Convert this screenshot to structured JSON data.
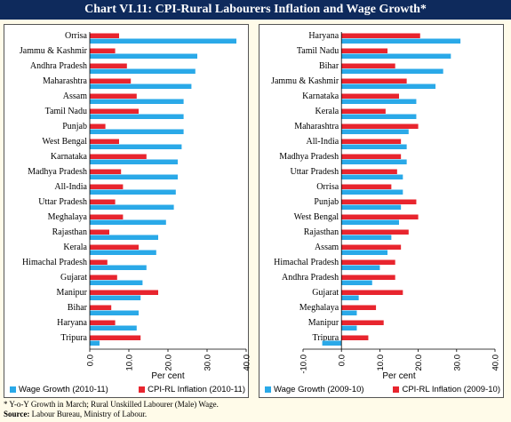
{
  "title": "Chart VI.11: CPI-Rural Labourers Inflation and Wage Growth*",
  "colors": {
    "wage": "#2aa9e8",
    "cpi": "#e8252e",
    "title_bg": "#0e2a5c"
  },
  "chart_data": [
    {
      "type": "bar",
      "orientation": "horizontal",
      "categories": [
        "Orrisa",
        "Jammu & Kashmir",
        "Andhra Pradesh",
        "Maharashtra",
        "Assam",
        "Tamil Nadu",
        "Punjab",
        "West Bengal",
        "Karnataka",
        "Madhya Pradesh",
        "All-India",
        "Uttar Pradesh",
        "Meghalaya",
        "Rajasthan",
        "Kerala",
        "Himachal Pradesh",
        "Gujarat",
        "Manipur",
        "Bihar",
        "Haryana",
        "Tripura"
      ],
      "series": [
        {
          "name": "Wage Growth (2010-11)",
          "values": [
            37.5,
            27.5,
            27.0,
            26.0,
            24.0,
            24.0,
            24.0,
            23.5,
            22.5,
            22.5,
            22.0,
            21.5,
            19.5,
            17.5,
            17.0,
            14.5,
            13.5,
            13.0,
            12.5,
            12.0,
            2.5
          ]
        },
        {
          "name": "CPI-RL Inflation (2010-11)",
          "values": [
            7.5,
            6.5,
            9.5,
            10.5,
            12.0,
            12.5,
            4.0,
            7.5,
            14.5,
            8.0,
            8.5,
            6.5,
            8.5,
            5.0,
            12.5,
            4.5,
            7.0,
            17.5,
            5.5,
            6.5,
            13.0
          ]
        }
      ],
      "xlabel": "Per cent",
      "xlim": [
        0,
        40
      ],
      "xticks": [
        "0.0",
        "10.0",
        "20.0",
        "30.0",
        "40.0"
      ]
    },
    {
      "type": "bar",
      "orientation": "horizontal",
      "categories": [
        "Haryana",
        "Tamil Nadu",
        "Bihar",
        "Jammu & Kashmir",
        "Karnataka",
        "Kerala",
        "Maharashtra",
        "All-India",
        "Madhya Pradesh",
        "Uttar Pradesh",
        "Orrisa",
        "Punjab",
        "West Bengal",
        "Rajasthan",
        "Assam",
        "Himachal Pradesh",
        "Andhra Pradesh",
        "Gujarat",
        "Meghalaya",
        "Manipur",
        "Tripura"
      ],
      "series": [
        {
          "name": "Wage Growth (2009-10)",
          "values": [
            31.0,
            28.5,
            26.5,
            24.5,
            19.5,
            19.5,
            17.5,
            17.0,
            17.0,
            16.0,
            16.0,
            15.5,
            15.0,
            13.0,
            12.0,
            10.0,
            8.0,
            4.5,
            4.0,
            4.0,
            -5.0
          ]
        },
        {
          "name": "CPI-RL Inflation (2009-10)",
          "values": [
            20.5,
            12.0,
            14.0,
            17.0,
            15.0,
            11.5,
            20.0,
            15.5,
            15.5,
            14.5,
            13.0,
            19.5,
            20.0,
            17.5,
            15.5,
            14.0,
            14.0,
            16.0,
            9.0,
            11.0,
            7.0
          ]
        }
      ],
      "xlabel": "Per cent",
      "xlim": [
        -10,
        40
      ],
      "xticks": [
        "-10.0",
        "0.0",
        "10.0",
        "20.0",
        "30.0",
        "40.0"
      ]
    }
  ],
  "footnotes": {
    "note": "* Y-o-Y Growth in March; Rural Unskilled Labourer (Male) Wage.",
    "source_label": "Source:",
    "source_text": "Labour Bureau, Ministry of Labour."
  }
}
